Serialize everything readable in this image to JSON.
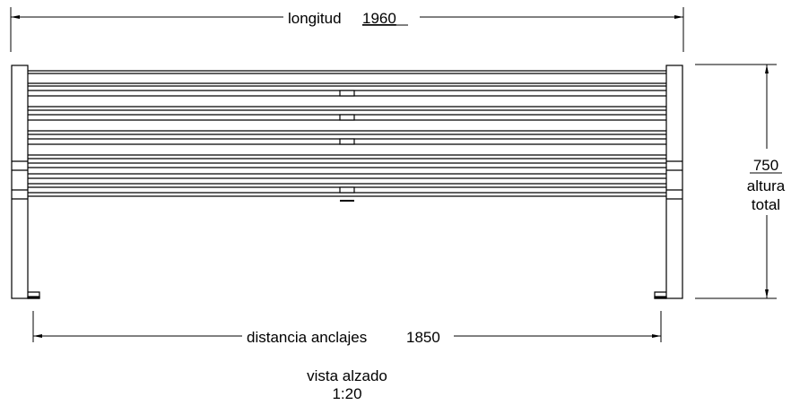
{
  "dimensions": {
    "length_label": "longitud",
    "length_value": "1960",
    "height_value": "750",
    "height_label_line1": "altura",
    "height_label_line2": "total",
    "anchor_label": "distancia anclajes",
    "anchor_value": "1850"
  },
  "view": {
    "title": "vista alzado",
    "scale": "1:20"
  }
}
